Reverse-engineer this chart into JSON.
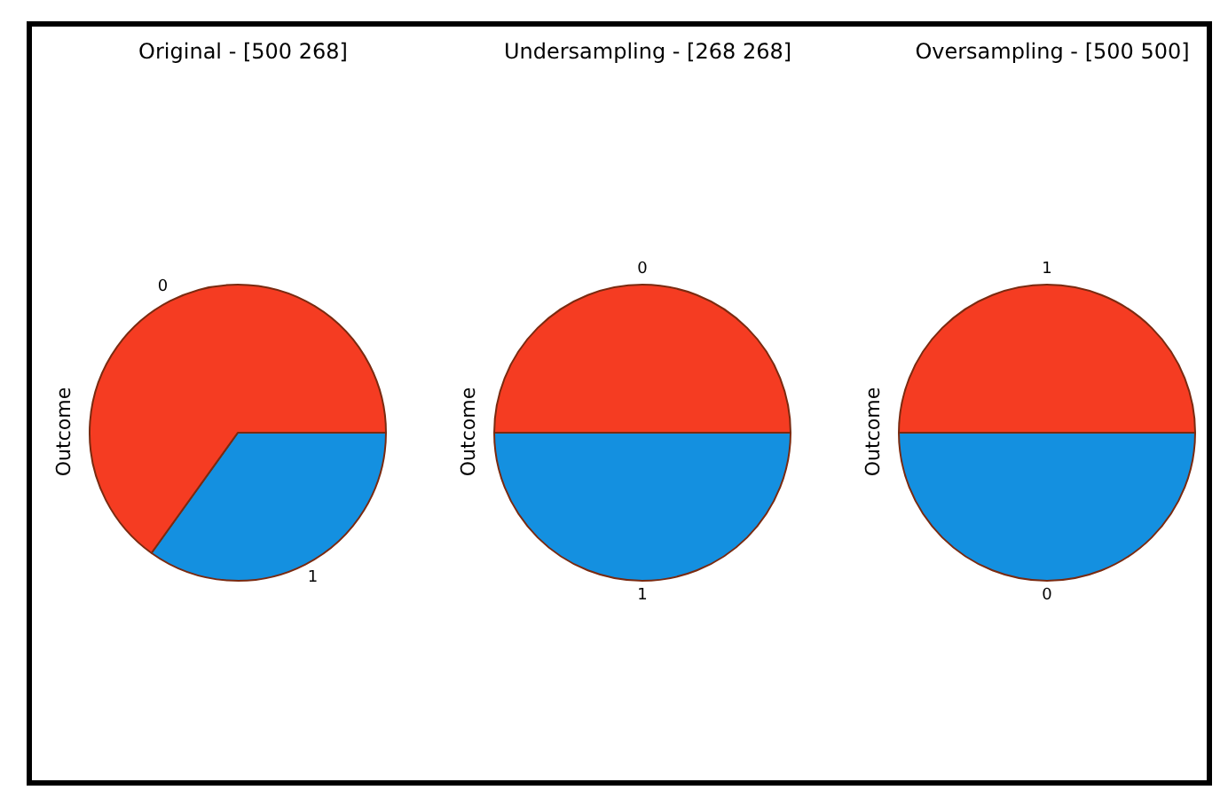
{
  "chart_data": [
    {
      "type": "pie",
      "title": "Original - [500 268]",
      "ylabel": "Outcome",
      "categories": [
        "0",
        "1"
      ],
      "values": [
        65.1,
        34.9
      ],
      "colors": [
        "#f53c22",
        "#1490e0"
      ]
    },
    {
      "type": "pie",
      "title": "Undersampling - [268 268]",
      "ylabel": "Outcome",
      "categories": [
        "0",
        "1"
      ],
      "values": [
        50,
        50
      ],
      "colors": [
        "#f53c22",
        "#1490e0"
      ]
    },
    {
      "type": "pie",
      "title": "Oversampling - [500 500]",
      "ylabel": "Outcome",
      "categories": [
        "1",
        "0"
      ],
      "values": [
        50,
        50
      ],
      "colors": [
        "#f53c22",
        "#1490e0"
      ]
    }
  ]
}
